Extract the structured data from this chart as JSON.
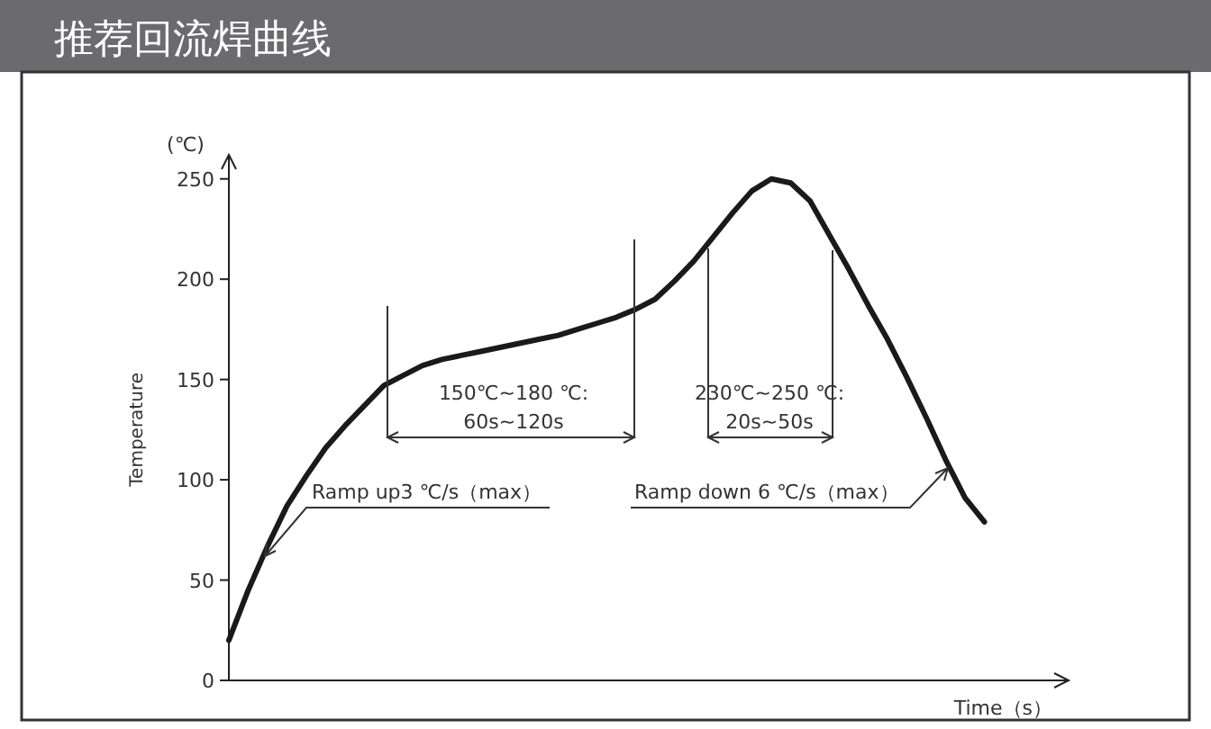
{
  "chart_data": {
    "type": "line",
    "title": "推荐回流焊曲线",
    "ylabel": "Temperature",
    "xlabel": "Time（s）",
    "annotations": [
      "(℃)",
      "150℃~180 ℃:\n60s~120s",
      "230℃~250 ℃:\n20s~50s",
      "Ramp up3 ℃/s（max）",
      "Ramp down 6 ℃/s（max）"
    ],
    "categories": [
      null,
      null,
      null,
      null,
      null,
      null,
      null,
      null,
      null,
      null,
      null,
      null,
      null,
      null,
      null,
      null,
      null,
      null,
      null,
      null,
      null,
      null,
      null,
      null,
      null,
      null,
      null,
      null,
      null,
      null,
      null,
      null,
      null,
      null,
      null,
      null,
      null,
      null,
      null,
      null
    ],
    "values": [
      20,
      45,
      67,
      87,
      102,
      116,
      127,
      137,
      147,
      152,
      157,
      160,
      162,
      164,
      166,
      168,
      170,
      172,
      175,
      178,
      181,
      185,
      190,
      199,
      209,
      221,
      233,
      244,
      250,
      248,
      239,
      222,
      205,
      187,
      170,
      151,
      131,
      110,
      91,
      79
    ],
    "color": "#1a1a1a",
    "ylim": [
      0,
      262
    ],
    "yticks": [
      0,
      50,
      100,
      150,
      200,
      250
    ],
    "tick_labels": "y",
    "grid": false,
    "legend": false
  }
}
